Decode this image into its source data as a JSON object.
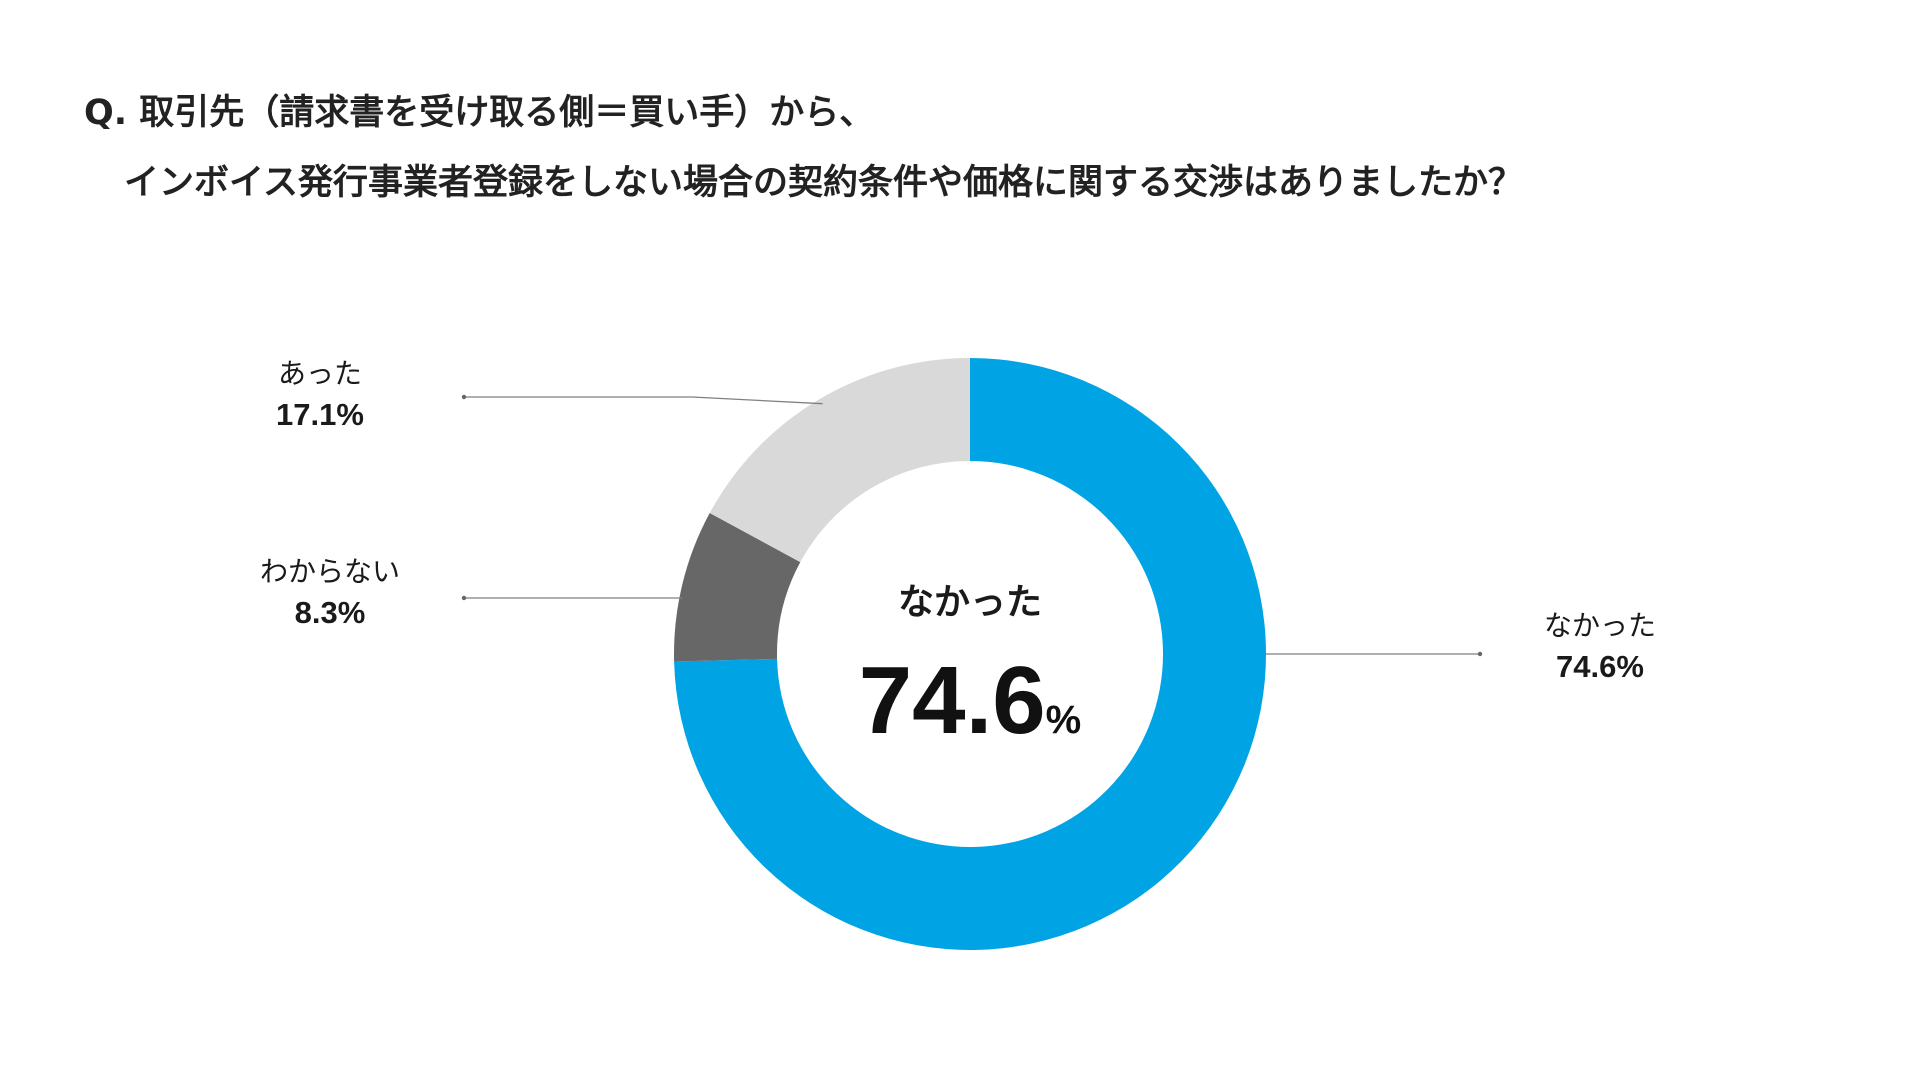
{
  "title": {
    "line1": "Q. 取引先（請求書を受け取る側＝買い手）から、",
    "line2": "インボイス発行事業者登録をしない場合の契約条件や価格に関する交渉はありましたか？"
  },
  "chart_data": {
    "type": "pie",
    "variant": "donut",
    "slices": [
      {
        "label": "なかった",
        "value": 74.6,
        "value_text": "74.6%",
        "color": "#00A4E4"
      },
      {
        "label": "わからない",
        "value": 8.3,
        "value_text": "8.3%",
        "color": "#676767"
      },
      {
        "label": "あった",
        "value": 17.1,
        "value_text": "17.1%",
        "color": "#D9D9D9"
      }
    ],
    "start_angle_deg": 0,
    "direction": "clockwise",
    "center": {
      "label": "なかった",
      "value": "74.6",
      "unit": "%"
    }
  }
}
